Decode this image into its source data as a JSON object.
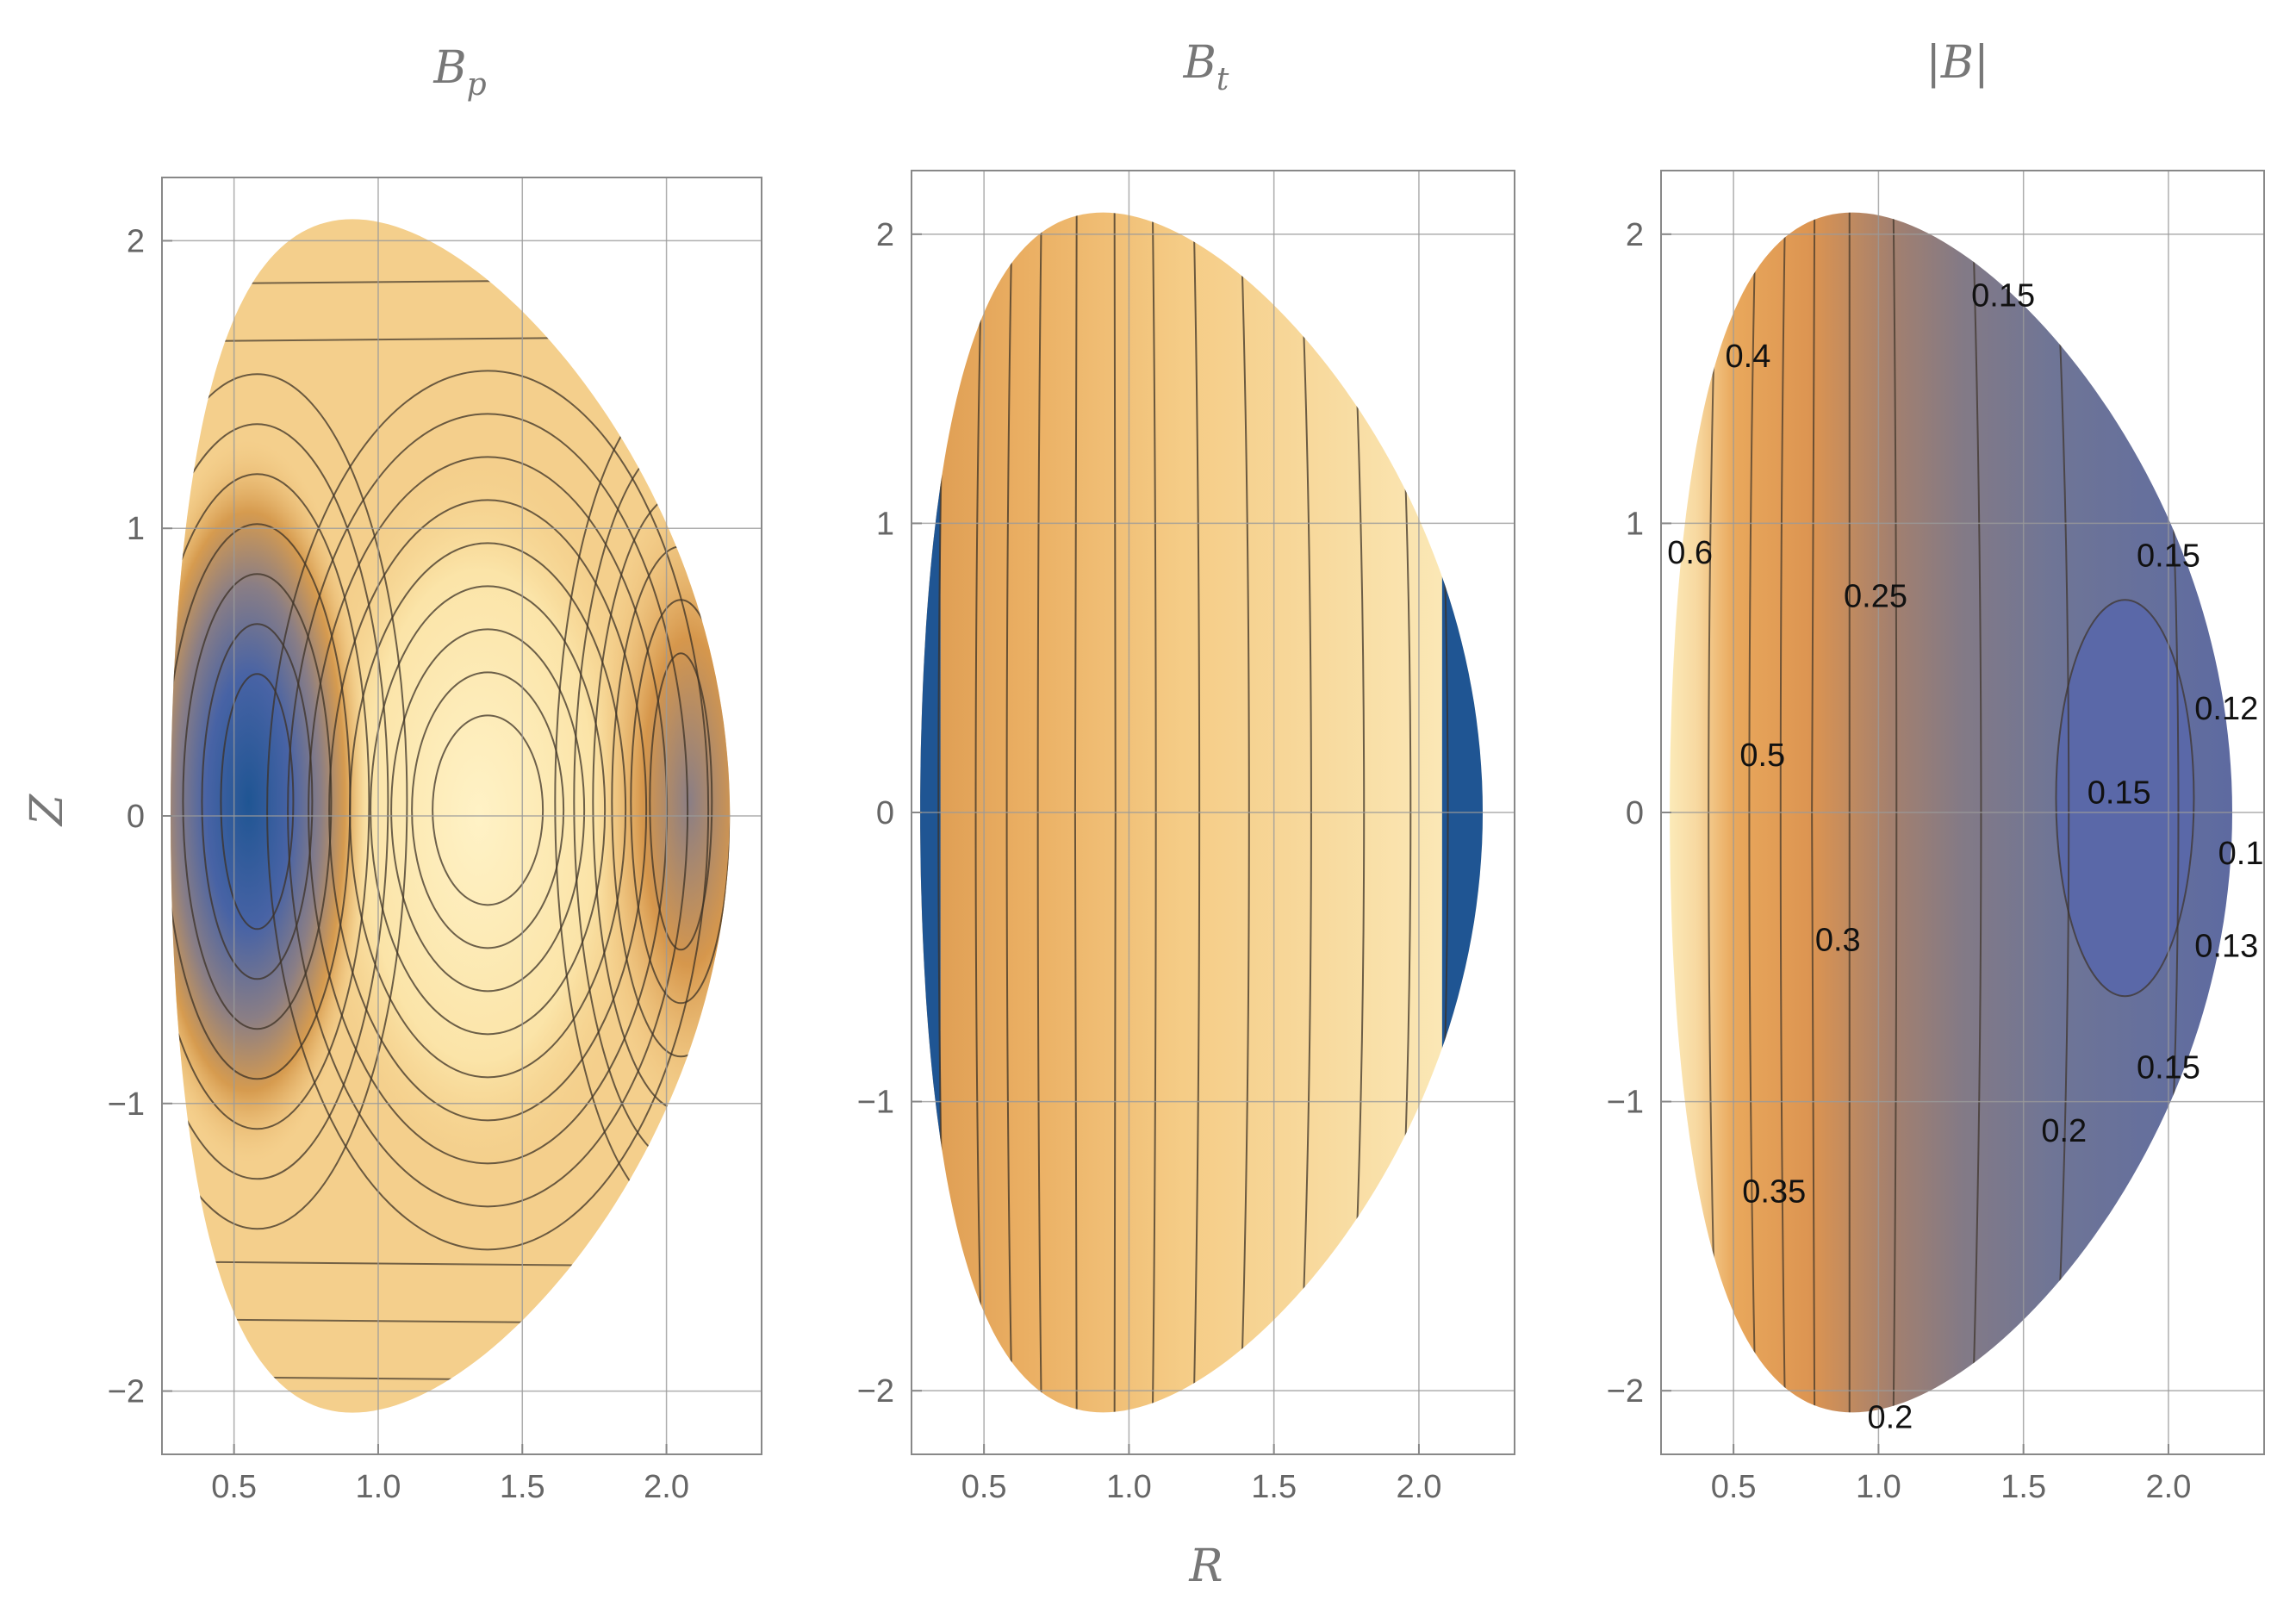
{
  "figure": {
    "panels": [
      "Bp",
      "Bt",
      "B"
    ]
  },
  "chart_data": [
    {
      "type": "contour",
      "id": "Bp",
      "title": {
        "main": "B",
        "sub": "p"
      },
      "xlabel": "",
      "ylabel": "Z",
      "xlim": [
        0.25,
        2.33
      ],
      "ylim": [
        -2.22,
        2.22
      ],
      "xticks": [
        "0.5",
        "1.0",
        "1.5",
        "2.0"
      ],
      "yticks": [
        "2",
        "1",
        "0",
        "−1",
        "−2"
      ],
      "grid": true,
      "boundary": {
        "r_center": 1.25,
        "minor_radius": 0.97,
        "elongation": 2.15,
        "triangularity": 0.35
      },
      "colormap": "blue (low) to pale yellow (high); two low-field lobes near R=0.55 and R=2.05, high-field island near R=1.35",
      "contour_labels": []
    },
    {
      "type": "contour",
      "id": "Bt",
      "title": {
        "main": "B",
        "sub": "t"
      },
      "xlabel": "R",
      "ylabel": "",
      "xlim": [
        0.25,
        2.33
      ],
      "ylim": [
        -2.22,
        2.22
      ],
      "xticks": [
        "0.5",
        "1.0",
        "1.5",
        "2.0"
      ],
      "yticks": [
        "2",
        "1",
        "0",
        "−1",
        "−2"
      ],
      "grid": true,
      "boundary": {
        "r_center": 1.25,
        "minor_radius": 0.97,
        "elongation": 2.15,
        "triangularity": 0.35
      },
      "colormap": "blue at inner/outer edges, orange to pale yellow decreasing with R",
      "contour_labels": []
    },
    {
      "type": "contour",
      "id": "B",
      "title": {
        "main": "|B|",
        "sub": ""
      },
      "xlabel": "",
      "ylabel": "",
      "xlim": [
        0.25,
        2.33
      ],
      "ylim": [
        -2.22,
        2.22
      ],
      "xticks": [
        "0.5",
        "1.0",
        "1.5",
        "2.0"
      ],
      "yticks": [
        "2",
        "1",
        "0",
        "−1",
        "−2"
      ],
      "grid": true,
      "boundary": {
        "r_center": 1.25,
        "minor_radius": 0.97,
        "elongation": 2.15,
        "triangularity": 0.35
      },
      "colormap": "pale yellow (high, R≈0.3) through orange and brown to slate blue (low, outboard)",
      "contour_labels": [
        {
          "text": "0.15",
          "r": 1.43,
          "z": 1.79
        },
        {
          "text": "0.4",
          "r": 0.55,
          "z": 1.58
        },
        {
          "text": "0.6",
          "r": 0.35,
          "z": 0.9
        },
        {
          "text": "0.15",
          "r": 2.0,
          "z": 0.89
        },
        {
          "text": "0.25",
          "r": 0.99,
          "z": 0.75
        },
        {
          "text": "0.12",
          "r": 2.2,
          "z": 0.36
        },
        {
          "text": "0.5",
          "r": 0.6,
          "z": 0.2
        },
        {
          "text": "0.15",
          "r": 1.83,
          "z": 0.07
        },
        {
          "text": "0.1",
          "r": 2.25,
          "z": -0.14
        },
        {
          "text": "0.3",
          "r": 0.86,
          "z": -0.44
        },
        {
          "text": "0.13",
          "r": 2.2,
          "z": -0.46
        },
        {
          "text": "0.15",
          "r": 2.0,
          "z": -0.88
        },
        {
          "text": "0.2",
          "r": 1.64,
          "z": -1.1
        },
        {
          "text": "0.35",
          "r": 0.64,
          "z": -1.31
        },
        {
          "text": "0.2",
          "r": 1.04,
          "z": -2.09
        }
      ]
    }
  ]
}
